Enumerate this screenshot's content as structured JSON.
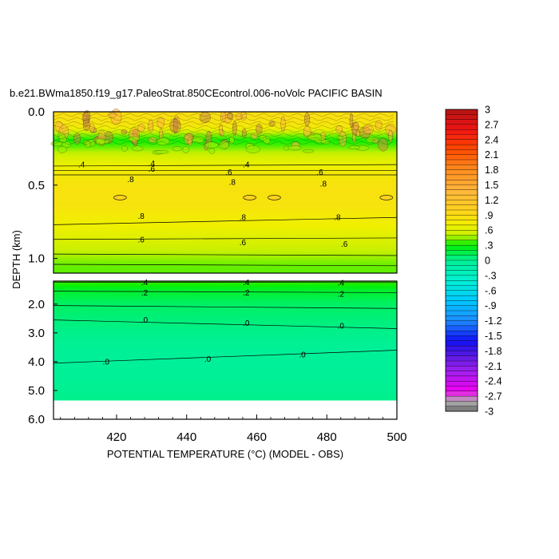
{
  "chart_data": {
    "type": "heatmap",
    "title": "b.e21.BWma1850.f19_g17.PaleoStrat.850CEcontrol.006-noVolc PACIFIC BASIN",
    "xlabel_prefix": "POTENTIAL TEMPERATURE (",
    "xlabel_unit": "°C",
    "xlabel_suffix": ") (MODEL - OBS)",
    "ylabel": "DEPTH (km)",
    "xlim": [
      402,
      500
    ],
    "x_ticks": [
      {
        "value": 420,
        "label": "420"
      },
      {
        "value": 440,
        "label": "440"
      },
      {
        "value": 460,
        "label": "460"
      },
      {
        "value": 480,
        "label": "480"
      },
      {
        "value": 500,
        "label": "500"
      }
    ],
    "upper_panel": {
      "ylim": [
        0.0,
        1.1
      ],
      "y_ticks": [
        {
          "value": 0.0,
          "label": "0.0"
        },
        {
          "value": 0.5,
          "label": "0.5"
        },
        {
          "value": 1.0,
          "label": "1.0"
        }
      ]
    },
    "lower_panel": {
      "ylim": [
        1.2,
        6.0
      ],
      "y_ticks": [
        {
          "value": 2.0,
          "label": "2.0"
        },
        {
          "value": 3.0,
          "label": "3.0"
        },
        {
          "value": 4.0,
          "label": "4.0"
        },
        {
          "value": 5.0,
          "label": "5.0"
        },
        {
          "value": 6.0,
          "label": "6.0"
        }
      ],
      "missing_below": 5.35
    },
    "field_profile": [
      {
        "depth": 0.0,
        "value": 0.9
      },
      {
        "depth": 0.1,
        "value": 0.8
      },
      {
        "depth": 0.15,
        "value": 0.45
      },
      {
        "depth": 0.2,
        "value": 0.3
      },
      {
        "depth": 0.26,
        "value": 0.45
      },
      {
        "depth": 0.32,
        "value": 0.6
      },
      {
        "depth": 0.38,
        "value": 0.7
      },
      {
        "depth": 0.45,
        "value": 0.8
      },
      {
        "depth": 0.55,
        "value": 0.85
      },
      {
        "depth": 0.65,
        "value": 0.82
      },
      {
        "depth": 0.75,
        "value": 0.72
      },
      {
        "depth": 0.85,
        "value": 0.62
      },
      {
        "depth": 0.95,
        "value": 0.5
      },
      {
        "depth": 1.05,
        "value": 0.4
      },
      {
        "depth": 1.2,
        "value": 0.38
      },
      {
        "depth": 1.5,
        "value": 0.22
      },
      {
        "depth": 2.0,
        "value": 0.1
      },
      {
        "depth": 3.0,
        "value": 0.02
      },
      {
        "depth": 4.0,
        "value": -0.02
      },
      {
        "depth": 5.35,
        "value": 0.02
      }
    ],
    "contours_upper": [
      {
        "y_left": 0.37,
        "y_right": 0.36,
        "label": ".4",
        "label_pos": [
          [
            410,
            0.36
          ],
          [
            430,
            0.35
          ],
          [
            457,
            0.36
          ]
        ]
      },
      {
        "y_left": 0.4,
        "y_right": 0.4,
        "label": ".6",
        "label_pos": [
          [
            430,
            0.39
          ],
          [
            452,
            0.41
          ],
          [
            478,
            0.41
          ]
        ]
      },
      {
        "y_left": 0.43,
        "y_right": 0.43,
        "label": ".8",
        "label_pos": [
          [
            424,
            0.46
          ],
          [
            453,
            0.48
          ],
          [
            479,
            0.49
          ]
        ]
      },
      {
        "y_left": 0.77,
        "y_right": 0.72,
        "label": ".8",
        "label_pos": [
          [
            427,
            0.71
          ],
          [
            456,
            0.72
          ],
          [
            483,
            0.72
          ]
        ]
      },
      {
        "y_left": 0.87,
        "y_right": 0.86,
        "label": ".6",
        "label_pos": [
          [
            427,
            0.87
          ],
          [
            456,
            0.89
          ],
          [
            485,
            0.9
          ]
        ]
      },
      {
        "y_left": 0.97,
        "y_right": 0.98,
        "label": "",
        "label_pos": []
      },
      {
        "y_left": 1.04,
        "y_right": 1.05,
        "label": "",
        "label_pos": []
      }
    ],
    "contours_lower": [
      {
        "y_left": 1.24,
        "y_right": 1.25,
        "label": ".4",
        "label_pos": [
          [
            428,
            1.24
          ],
          [
            457,
            1.24
          ],
          [
            484,
            1.25
          ]
        ]
      },
      {
        "y_left": 1.55,
        "y_right": 1.6,
        "label": ".2",
        "label_pos": [
          [
            428,
            1.6
          ],
          [
            457,
            1.6
          ],
          [
            484,
            1.65
          ]
        ]
      },
      {
        "y_left": 2.05,
        "y_right": 2.15,
        "label": "",
        "label_pos": []
      },
      {
        "y_left": 2.55,
        "y_right": 2.85,
        "label": ".0",
        "label_pos": [
          [
            428,
            2.55
          ],
          [
            457,
            2.65
          ],
          [
            484,
            2.75
          ]
        ]
      },
      {
        "y_left": 4.05,
        "y_right": 3.6,
        "label": ".0",
        "label_pos": [
          [
            417,
            4.0
          ],
          [
            446,
            3.9
          ],
          [
            473,
            3.75
          ]
        ]
      }
    ],
    "colorbar": {
      "min": -3.0,
      "max": 3.0,
      "step": 0.1,
      "labels": [
        "3",
        "2.7",
        "2.4",
        "2.1",
        "1.8",
        "1.5",
        "1.2",
        ".9",
        ".6",
        ".3",
        "0",
        "-.3",
        "-.6",
        "-.9",
        "-1.2",
        "-1.5",
        "-1.8",
        "-2.1",
        "-2.4",
        "-2.7",
        "-3"
      ],
      "color_stops": [
        {
          "value": -3.0,
          "color": "#6e6e6e"
        },
        {
          "value": -2.8,
          "color": "#b4b4b4"
        },
        {
          "value": -2.6,
          "color": "#f000f0"
        },
        {
          "value": -2.2,
          "color": "#a020f0"
        },
        {
          "value": -1.9,
          "color": "#5a1ae0"
        },
        {
          "value": -1.6,
          "color": "#1010f5"
        },
        {
          "value": -1.2,
          "color": "#1e8cff"
        },
        {
          "value": -0.8,
          "color": "#00c8ff"
        },
        {
          "value": -0.4,
          "color": "#00f0d2"
        },
        {
          "value": 0.0,
          "color": "#00f096"
        },
        {
          "value": 0.3,
          "color": "#00f000"
        },
        {
          "value": 0.5,
          "color": "#c8f000"
        },
        {
          "value": 0.7,
          "color": "#f0f000"
        },
        {
          "value": 1.0,
          "color": "#ffd21e"
        },
        {
          "value": 1.4,
          "color": "#ffb43c"
        },
        {
          "value": 1.8,
          "color": "#ff8c1e"
        },
        {
          "value": 2.2,
          "color": "#ff4b00"
        },
        {
          "value": 2.6,
          "color": "#f01414"
        },
        {
          "value": 3.0,
          "color": "#b41414"
        }
      ]
    }
  }
}
